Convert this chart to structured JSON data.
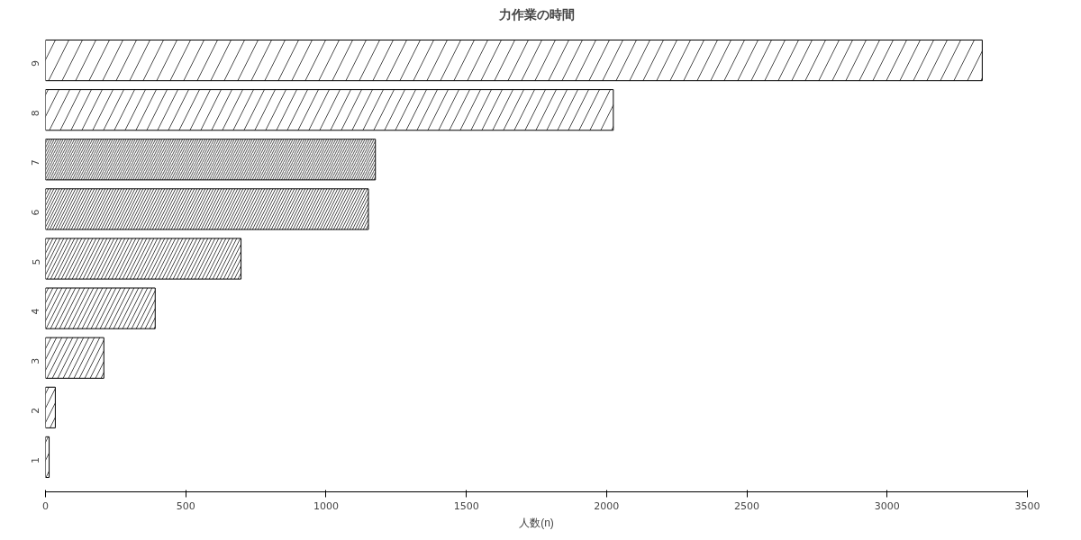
{
  "chart_data": {
    "type": "bar",
    "orientation": "horizontal",
    "title": "力作業の時間",
    "xlabel": "人数(n)",
    "categories": [
      "9",
      "8",
      "7",
      "6",
      "5",
      "4",
      "3",
      "2",
      "1"
    ],
    "values": [
      3339,
      2024,
      1176,
      1151,
      697,
      391,
      208,
      35,
      13
    ],
    "color": "#ffffff",
    "xlim": [
      0,
      3500
    ],
    "xticks": [
      0,
      500,
      1000,
      1500,
      2000,
      2500,
      3000,
      3500
    ],
    "grid": false
  }
}
